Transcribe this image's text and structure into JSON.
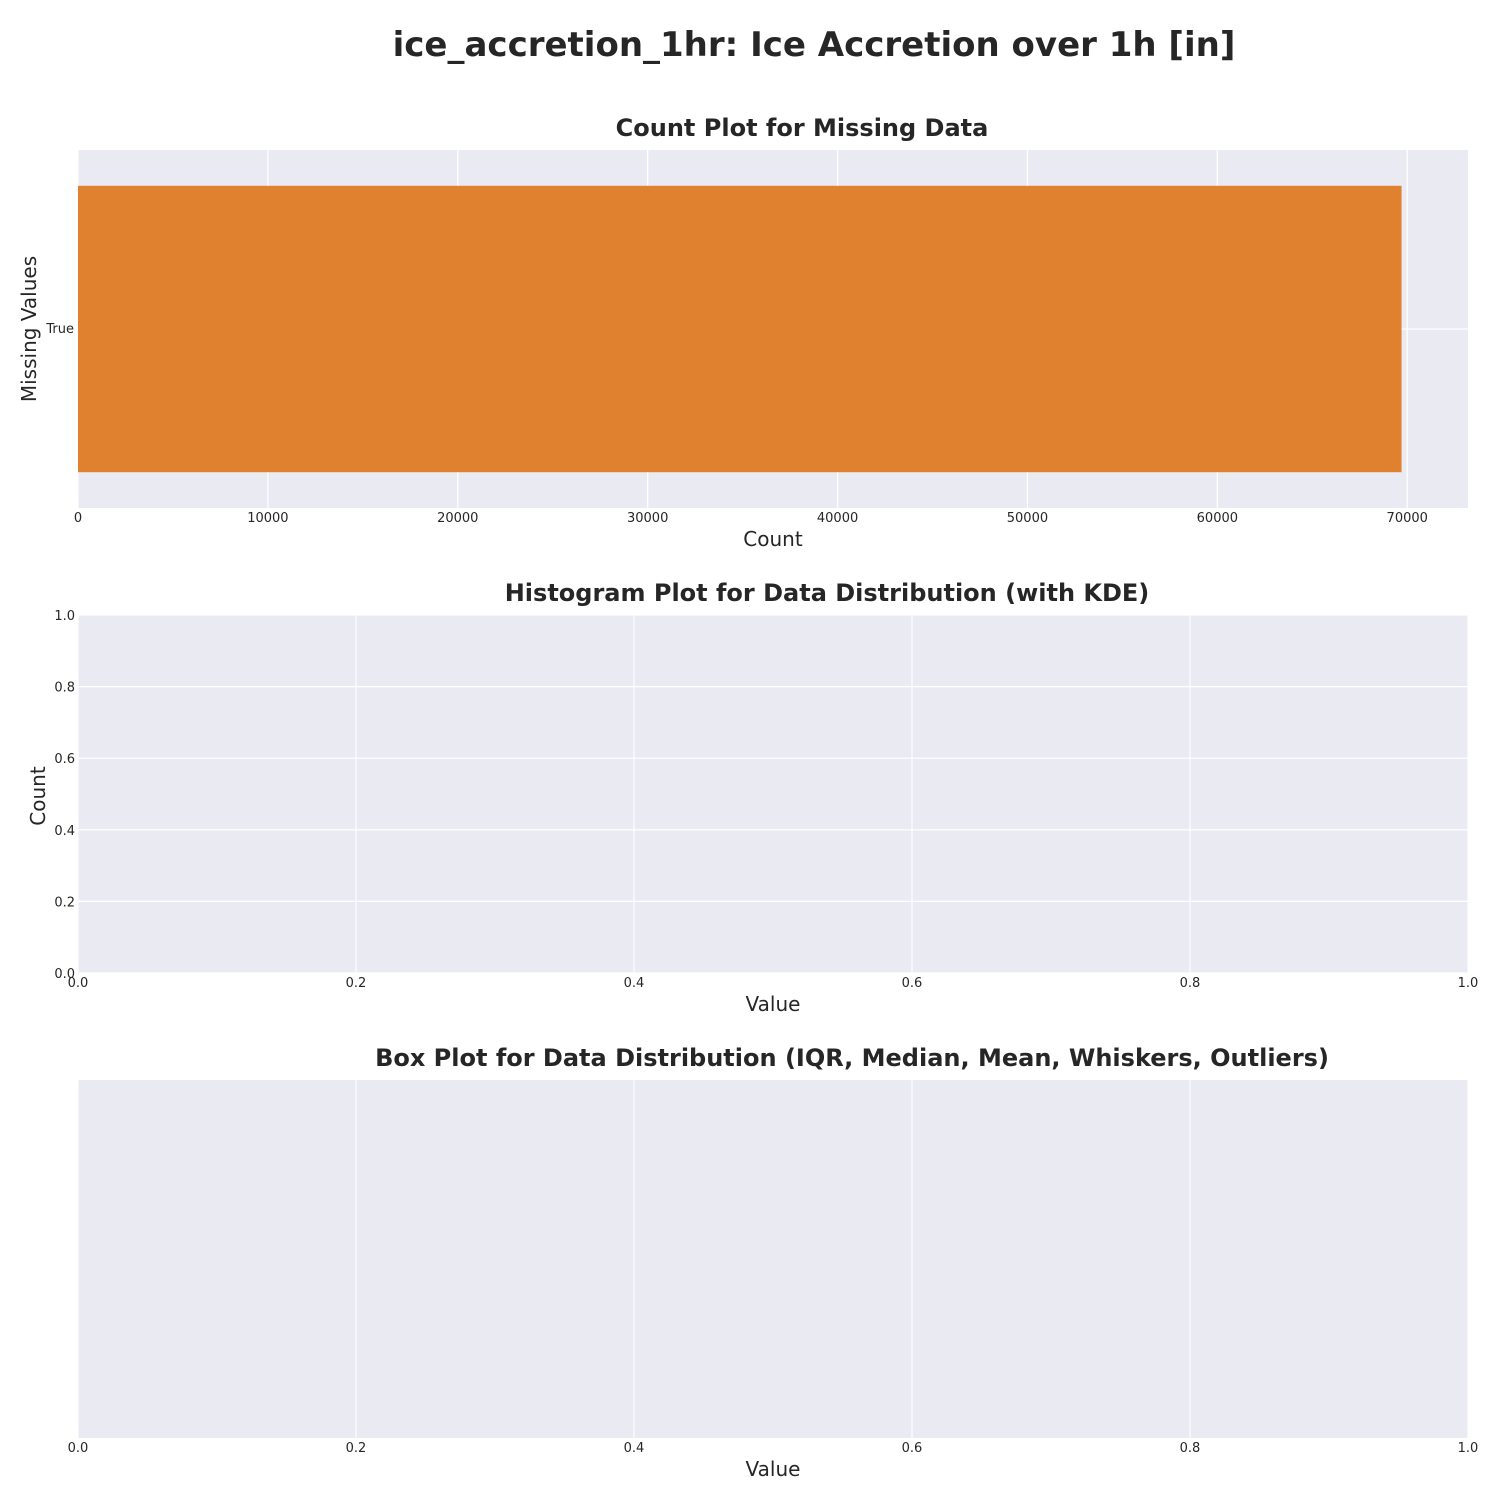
{
  "figure_title": "ice_accretion_1hr: Ice Accretion over 1h [in]",
  "colors": {
    "panel_background": "#eaeaf2",
    "grid": "#ffffff",
    "bar": "#e0812f",
    "text": "#262626"
  },
  "chart_data": [
    {
      "type": "bar",
      "orientation": "horizontal",
      "title": "Count Plot for Missing Data",
      "xlabel": "Count",
      "ylabel": "Missing Values",
      "categories": [
        "True"
      ],
      "values": [
        69700
      ],
      "xlim": [
        0,
        73200
      ],
      "xticks": [
        0,
        10000,
        20000,
        30000,
        40000,
        50000,
        60000,
        70000
      ],
      "grid": true
    },
    {
      "type": "bar",
      "title": "Histogram Plot for Data Distribution (with KDE)",
      "xlabel": "Value",
      "ylabel": "Count",
      "values": [],
      "xlim": [
        0.0,
        1.0
      ],
      "ylim": [
        0.0,
        1.0
      ],
      "xticks": [
        0.0,
        0.2,
        0.4,
        0.6,
        0.8,
        1.0
      ],
      "yticks": [
        0.0,
        0.2,
        0.4,
        0.6,
        0.8,
        1.0
      ],
      "grid": true
    },
    {
      "type": "scatter",
      "title": "Box Plot for Data Distribution (IQR, Median, Mean, Whiskers, Outliers)",
      "xlabel": "Value",
      "ylabel": "",
      "values": [],
      "xlim": [
        0.0,
        1.0
      ],
      "xticks": [
        0.0,
        0.2,
        0.4,
        0.6,
        0.8,
        1.0
      ],
      "grid": true
    }
  ]
}
